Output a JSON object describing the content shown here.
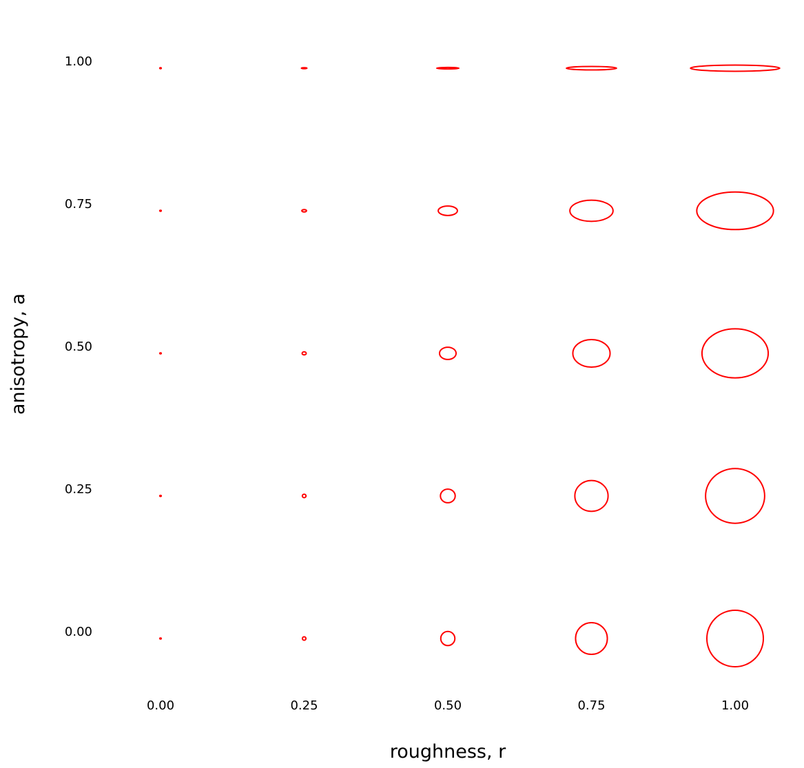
{
  "chart_data": {
    "type": "scatter",
    "xlabel": "roughness, r",
    "ylabel": "anisotropy, a",
    "x_ticks": [
      "0.00",
      "0.25",
      "0.50",
      "0.75",
      "1.00"
    ],
    "y_ticks": [
      "0.00",
      "0.25",
      "0.50",
      "0.75",
      "1.00"
    ],
    "grid": false,
    "marker_color": "#ff0000",
    "points": [
      {
        "r": 0.0,
        "a": 0.0
      },
      {
        "r": 0.25,
        "a": 0.0
      },
      {
        "r": 0.5,
        "a": 0.0
      },
      {
        "r": 0.75,
        "a": 0.0
      },
      {
        "r": 1.0,
        "a": 0.0
      },
      {
        "r": 0.0,
        "a": 0.25
      },
      {
        "r": 0.25,
        "a": 0.25
      },
      {
        "r": 0.5,
        "a": 0.25
      },
      {
        "r": 0.75,
        "a": 0.25
      },
      {
        "r": 1.0,
        "a": 0.25
      },
      {
        "r": 0.0,
        "a": 0.5
      },
      {
        "r": 0.25,
        "a": 0.5
      },
      {
        "r": 0.5,
        "a": 0.5
      },
      {
        "r": 0.75,
        "a": 0.5
      },
      {
        "r": 1.0,
        "a": 0.5
      },
      {
        "r": 0.0,
        "a": 0.75
      },
      {
        "r": 0.25,
        "a": 0.75
      },
      {
        "r": 0.5,
        "a": 0.75
      },
      {
        "r": 0.75,
        "a": 0.75
      },
      {
        "r": 1.0,
        "a": 0.75
      },
      {
        "r": 0.0,
        "a": 1.0
      },
      {
        "r": 0.25,
        "a": 1.0
      },
      {
        "r": 0.5,
        "a": 1.0
      },
      {
        "r": 0.75,
        "a": 1.0
      },
      {
        "r": 1.0,
        "a": 1.0
      }
    ]
  }
}
